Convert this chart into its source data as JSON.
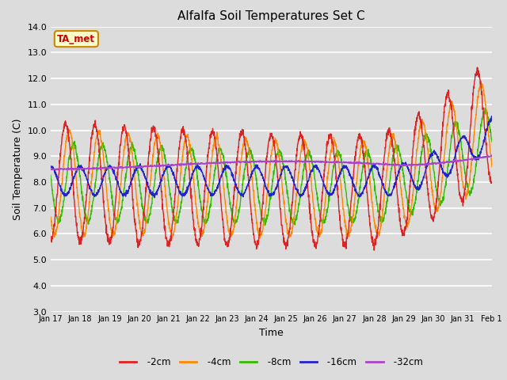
{
  "title": "Alfalfa Soil Temperatures Set C",
  "xlabel": "Time",
  "ylabel": "Soil Temperature (C)",
  "ylim": [
    3.0,
    14.0
  ],
  "yticks": [
    3.0,
    4.0,
    5.0,
    6.0,
    7.0,
    8.0,
    9.0,
    10.0,
    11.0,
    12.0,
    13.0,
    14.0
  ],
  "bg_color": "#dcdcdc",
  "plot_bg": "#dcdcdc",
  "grid_color": "#ffffff",
  "colors": {
    "-2cm": "#dd2222",
    "-4cm": "#ff8800",
    "-8cm": "#33bb00",
    "-16cm": "#2222cc",
    "-32cm": "#aa44cc"
  },
  "annotation_label": "TA_met",
  "annotation_bg": "#ffffcc",
  "annotation_border": "#cc8800",
  "annotation_text_color": "#cc0000",
  "figsize": [
    6.4,
    4.8
  ],
  "dpi": 100
}
